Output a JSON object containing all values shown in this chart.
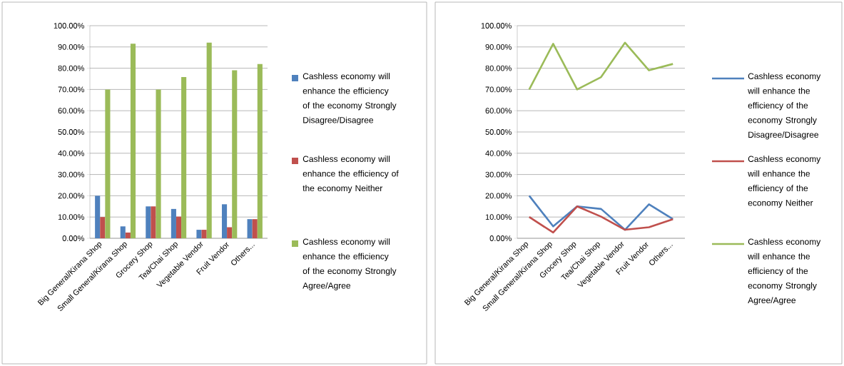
{
  "chart_data": [
    {
      "type": "bar",
      "categories": [
        "Big General/Kirana Shop",
        "Small General/Kirana Shop",
        "Grocery Shop",
        "Tea/Chai Shop",
        "Vegetable Vendor",
        "Fruit Vendor",
        "Others..."
      ],
      "series": [
        {
          "name": "Cashless economy will enhance the efficiency of the economy Strongly Disagree/Disagree",
          "color": "#4f81bd",
          "values": [
            20,
            5.6,
            15,
            13.8,
            4,
            16,
            9
          ]
        },
        {
          "name": "Cashless economy will enhance the efficiency of the economy Neither",
          "color": "#c0504d",
          "values": [
            10,
            2.7,
            15,
            10.2,
            4,
            5.2,
            9
          ]
        },
        {
          "name": "Cashless economy will enhance the efficiency of the economy Strongly Agree/Agree",
          "color": "#9bbb59",
          "values": [
            70,
            91.5,
            70,
            75.8,
            92,
            79,
            82
          ]
        }
      ],
      "ylim": [
        0,
        100
      ],
      "yticks": [
        {
          "value": 0,
          "label": "0.00%"
        },
        {
          "value": 10,
          "label": "10.00%"
        },
        {
          "value": 20,
          "label": "20.00%"
        },
        {
          "value": 30,
          "label": "30.00%"
        },
        {
          "value": 40,
          "label": "40.00%"
        },
        {
          "value": 50,
          "label": "50.00%"
        },
        {
          "value": 60,
          "label": "60.00%"
        },
        {
          "value": 70,
          "label": "70.00%"
        },
        {
          "value": 80,
          "label": "80.00%"
        },
        {
          "value": 90,
          "label": "90.00%"
        },
        {
          "value": 100,
          "label": "100.00%"
        }
      ],
      "grid": "y",
      "legend": "right"
    },
    {
      "type": "line",
      "categories": [
        "Big General/Kirana Shop",
        "Small General/Kirana Shop",
        "Grocery Shop",
        "Tea/Chai Shop",
        "Vegetable Vendor",
        "Fruit Vendor",
        "Others..."
      ],
      "series": [
        {
          "name": "Cashless economy will enhance the efficiency of the economy Strongly Disagree/Disagree",
          "color": "#4f81bd",
          "values": [
            20,
            5.6,
            15,
            13.8,
            4,
            16,
            9
          ]
        },
        {
          "name": "Cashless economy will enhance the efficiency of the economy Neither",
          "color": "#c0504d",
          "values": [
            10,
            2.7,
            15,
            10.2,
            4,
            5.2,
            9
          ]
        },
        {
          "name": "Cashless economy will enhance the efficiency of the economy Strongly Agree/Agree",
          "color": "#9bbb59",
          "values": [
            70,
            91.5,
            70,
            75.8,
            92,
            79,
            82
          ]
        }
      ],
      "ylim": [
        0,
        100
      ],
      "yticks": [
        {
          "value": 0,
          "label": "0.00%"
        },
        {
          "value": 10,
          "label": "10.00%"
        },
        {
          "value": 20,
          "label": "20.00%"
        },
        {
          "value": 30,
          "label": "30.00%"
        },
        {
          "value": 40,
          "label": "40.00%"
        },
        {
          "value": 50,
          "label": "50.00%"
        },
        {
          "value": 60,
          "label": "60.00%"
        },
        {
          "value": 70,
          "label": "70.00%"
        },
        {
          "value": 80,
          "label": "80.00%"
        },
        {
          "value": 90,
          "label": "90.00%"
        },
        {
          "value": 100,
          "label": "100.00%"
        }
      ],
      "grid": "y",
      "legend": "right"
    }
  ]
}
